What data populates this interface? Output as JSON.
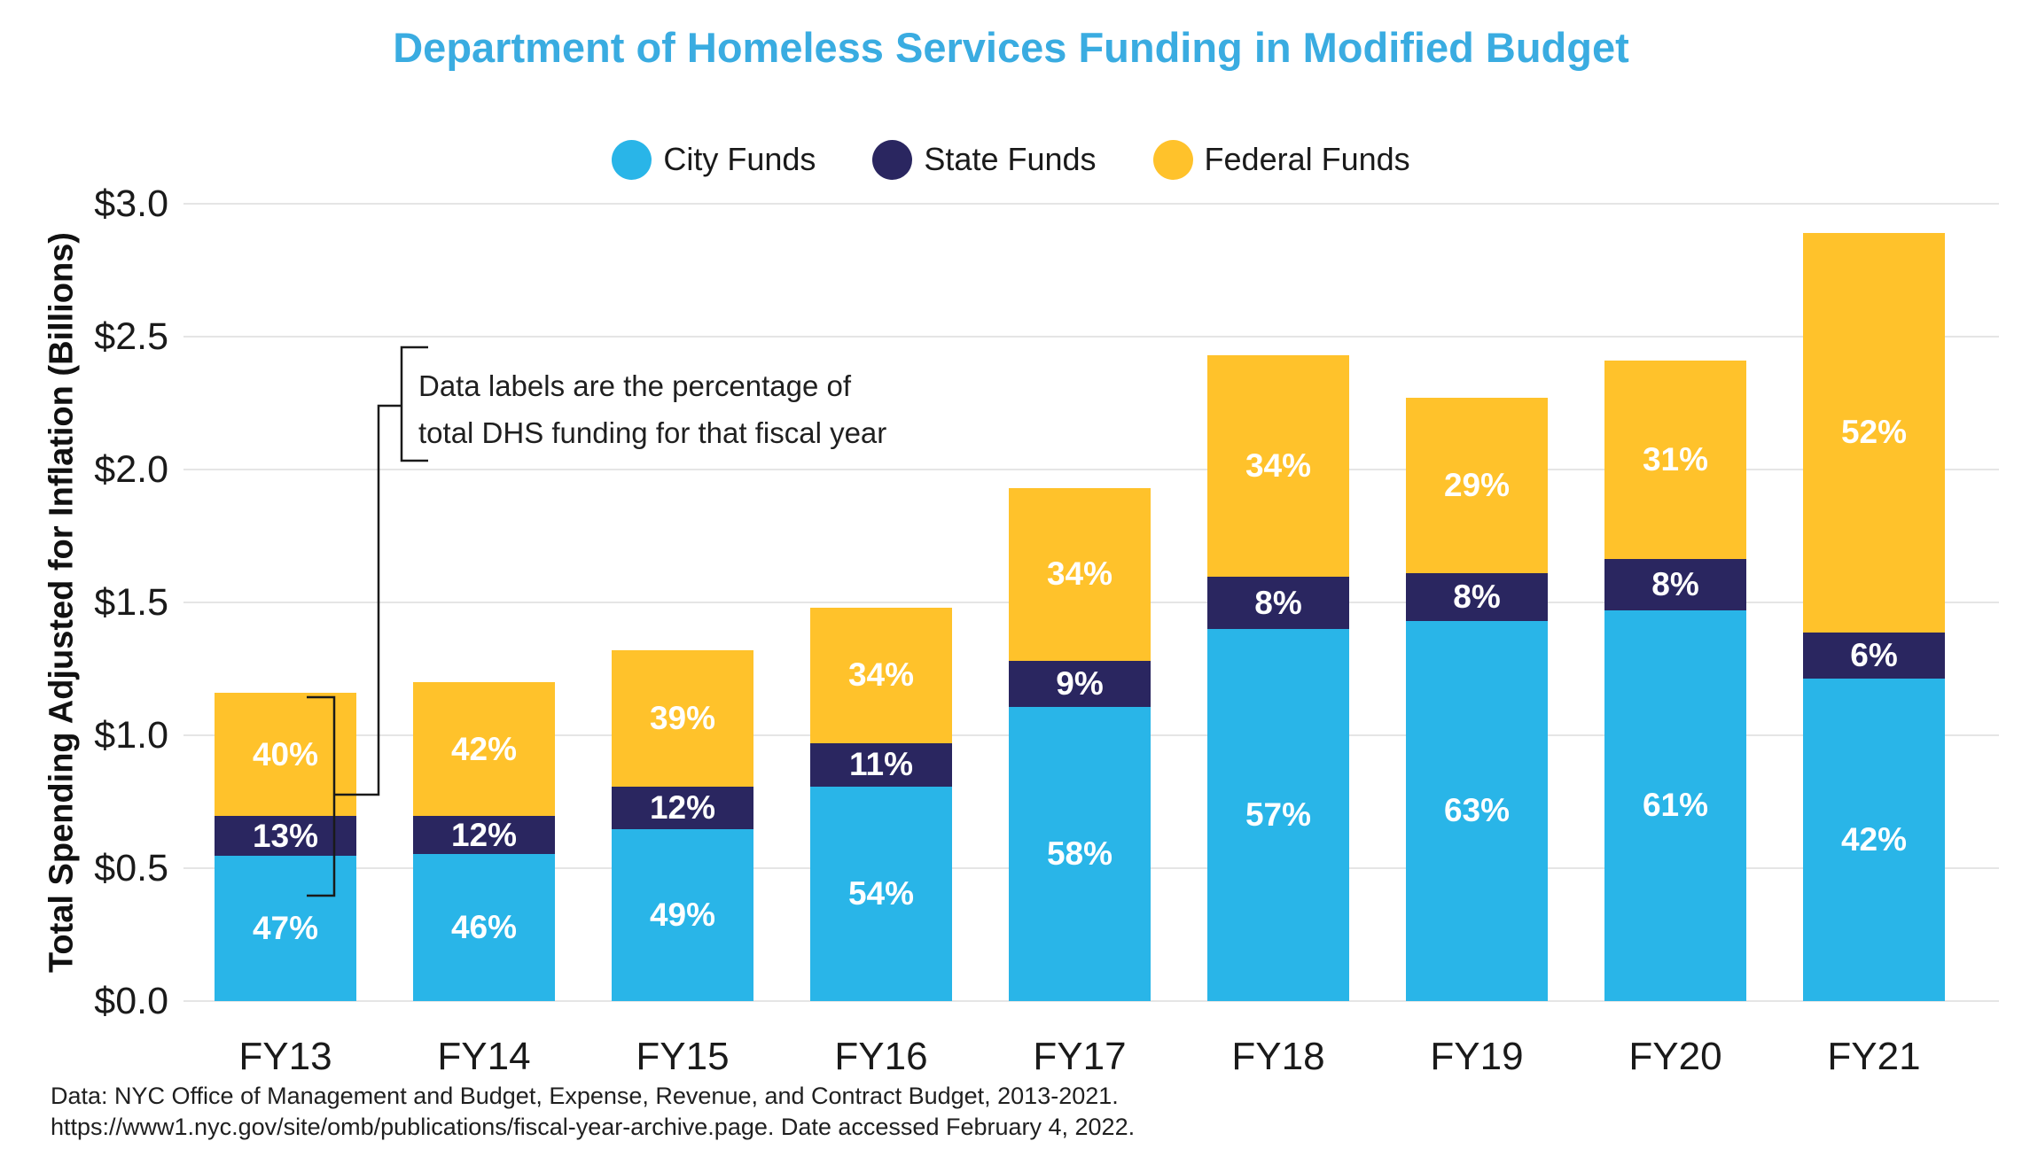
{
  "title": "Department of Homeless Services Funding in Modified Budget",
  "legend": [
    {
      "label": "City Funds",
      "color": "#29B5E8"
    },
    {
      "label": "State Funds",
      "color": "#2A2660"
    },
    {
      "label": "Federal Funds",
      "color": "#FFC22B"
    }
  ],
  "y_axis": {
    "title": "Total Spending Adjusted for Inflation (Billions)",
    "tick_labels": [
      "$0.0",
      "$0.5",
      "$1.0",
      "$1.5",
      "$2.0",
      "$2.5",
      "$3.0"
    ],
    "tick_values": [
      0.0,
      0.5,
      1.0,
      1.5,
      2.0,
      2.5,
      3.0
    ]
  },
  "annotation": {
    "line1": "Data labels are the percentage of",
    "line2": "total DHS funding for that fiscal year"
  },
  "footer": {
    "line1": "Data: NYC Office of Management and Budget, Expense, Revenue, and Contract Budget, 2013-2021.",
    "line2": "https://www1.nyc.gov/site/omb/publications/fiscal-year-archive.page. Date accessed February 4, 2022."
  },
  "chart_data": {
    "type": "bar",
    "stacked": true,
    "title": "Department of Homeless Services Funding in Modified Budget",
    "xlabel": "",
    "ylabel": "Total Spending Adjusted for Inflation (Billions)",
    "ylim": [
      0,
      3.0
    ],
    "grid": true,
    "legend_position": "top",
    "categories": [
      "FY13",
      "FY14",
      "FY15",
      "FY16",
      "FY17",
      "FY18",
      "FY19",
      "FY20",
      "FY21"
    ],
    "totals_billions": [
      1.16,
      1.2,
      1.32,
      1.48,
      1.93,
      2.43,
      2.27,
      2.41,
      2.89
    ],
    "series": [
      {
        "name": "City Funds",
        "color": "#29B5E8",
        "percent_of_total": [
          47,
          46,
          49,
          54,
          58,
          57,
          63,
          61,
          42
        ],
        "labels": [
          "47%",
          "46%",
          "49%",
          "54%",
          "58%",
          "57%",
          "63%",
          "61%",
          "42%"
        ]
      },
      {
        "name": "State Funds",
        "color": "#2A2660",
        "percent_of_total": [
          13,
          12,
          12,
          11,
          9,
          8,
          8,
          8,
          6
        ],
        "labels": [
          "13%",
          "12%",
          "12%",
          "11%",
          "9%",
          "8%",
          "8%",
          "8%",
          "6%"
        ]
      },
      {
        "name": "Federal Funds",
        "color": "#FFC22B",
        "percent_of_total": [
          40,
          42,
          39,
          34,
          34,
          34,
          29,
          31,
          52
        ],
        "labels": [
          "40%",
          "42%",
          "39%",
          "34%",
          "34%",
          "34%",
          "29%",
          "31%",
          "52%"
        ]
      }
    ]
  }
}
